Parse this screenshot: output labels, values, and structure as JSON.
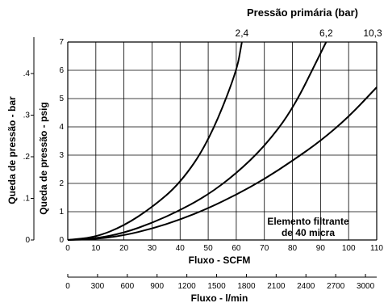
{
  "chart_data": {
    "type": "line",
    "title": "Pressão primária (bar)",
    "xlabel": "Fluxo - SCFM",
    "xlabel2": "Fluxo - l/min",
    "ylabel": "Queda de  pressão - psig",
    "ylabel2": "Queda de pressão - bar",
    "xlim": [
      0,
      110
    ],
    "ylim": [
      0,
      7
    ],
    "x_ticks": [
      "0",
      "10",
      "20",
      "30",
      "40",
      "50",
      "60",
      "70",
      "80",
      "90",
      "100",
      "110"
    ],
    "y_ticks": [
      "0",
      "1",
      "2",
      "3",
      "4",
      "5",
      "6",
      "7"
    ],
    "y2_ticks": [
      "0",
      ".1",
      ".2",
      ".3",
      ".4"
    ],
    "x2_ticks": [
      "0",
      "300",
      "600",
      "900",
      "1200",
      "1500",
      "1800",
      "2100",
      "2400",
      "2700",
      "3000"
    ],
    "annotation": [
      "Elemento filtrante",
      "de 40 micra"
    ],
    "grid": true,
    "series": [
      {
        "name": "2,4",
        "x": [
          0,
          10,
          20,
          30,
          40,
          50,
          60,
          62
        ],
        "y": [
          0,
          0.1,
          0.5,
          1.15,
          2.0,
          3.45,
          5.9,
          7.0
        ]
      },
      {
        "name": "6,2",
        "x": [
          0,
          10,
          20,
          30,
          40,
          50,
          60,
          70,
          80,
          90,
          92
        ],
        "y": [
          0,
          0.05,
          0.25,
          0.6,
          1.05,
          1.6,
          2.35,
          3.3,
          4.6,
          6.6,
          7.0
        ]
      },
      {
        "name": "10,3",
        "x": [
          0,
          10,
          20,
          30,
          40,
          50,
          60,
          70,
          80,
          90,
          100,
          110
        ],
        "y": [
          0,
          0.03,
          0.16,
          0.4,
          0.72,
          1.12,
          1.6,
          2.15,
          2.8,
          3.5,
          4.35,
          5.4
        ]
      }
    ]
  }
}
